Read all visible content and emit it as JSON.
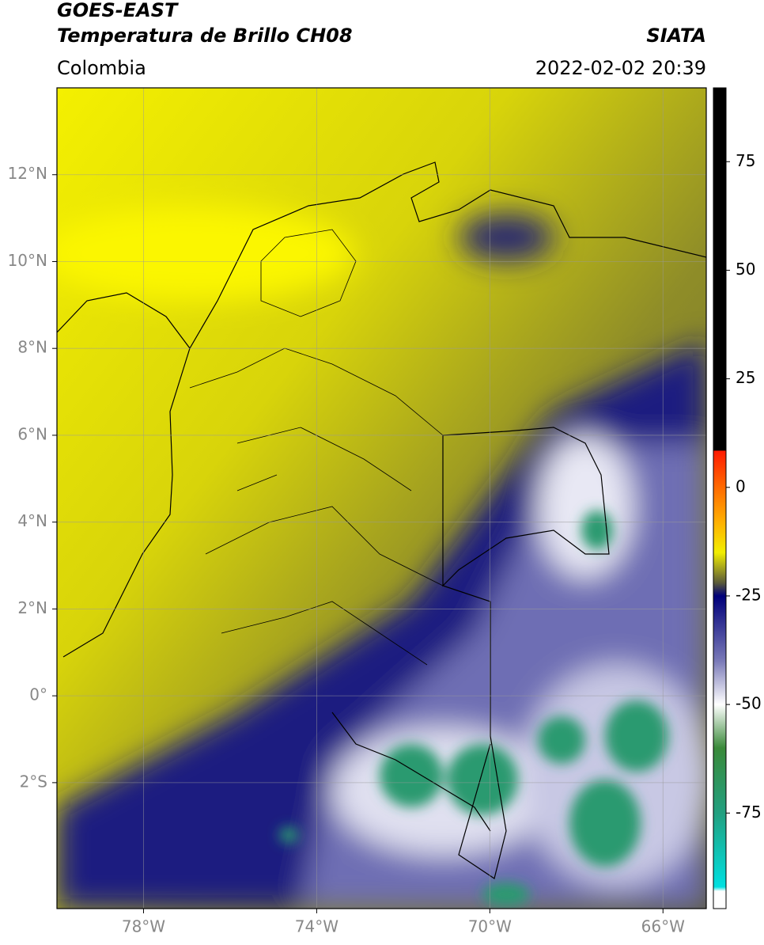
{
  "header": {
    "title_line1": "GOES-EAST",
    "title_line2": "Temperatura de Brillo CH08",
    "region": "Colombia",
    "source": "SIATA",
    "datetime": "2022-02-02 20:39"
  },
  "map": {
    "xlim": [
      -80,
      -65
    ],
    "ylim": [
      -4.9,
      14
    ],
    "xticks": [
      {
        "value": -78,
        "label": "78°W"
      },
      {
        "value": -74,
        "label": "74°W"
      },
      {
        "value": -70,
        "label": "70°W"
      },
      {
        "value": -66,
        "label": "66°W"
      }
    ],
    "yticks": [
      {
        "value": 12,
        "label": "12°N"
      },
      {
        "value": 10,
        "label": "10°N"
      },
      {
        "value": 8,
        "label": "8°N"
      },
      {
        "value": 6,
        "label": "6°N"
      },
      {
        "value": 4,
        "label": "4°N"
      },
      {
        "value": 2,
        "label": "2°N"
      },
      {
        "value": 0,
        "label": "0°"
      },
      {
        "value": -2,
        "label": "2°S"
      }
    ],
    "grid": true
  },
  "colorbar": {
    "lim": [
      -97,
      92
    ],
    "ticks": [
      75,
      50,
      25,
      0,
      -25,
      -50,
      -75
    ],
    "stops": [
      {
        "value": 92,
        "color": "#000000"
      },
      {
        "value": 8.5,
        "color": "#000000"
      },
      {
        "value": 8.4,
        "color": "#ff1a00"
      },
      {
        "value": 0,
        "color": "#ff6a00"
      },
      {
        "value": -8,
        "color": "#ffb000"
      },
      {
        "value": -15,
        "color": "#f2ee00"
      },
      {
        "value": -22,
        "color": "#5a5a3a"
      },
      {
        "value": -25,
        "color": "#00007a"
      },
      {
        "value": -40,
        "color": "#7a7ab8"
      },
      {
        "value": -50,
        "color": "#ffffff"
      },
      {
        "value": -60,
        "color": "#3a8a3a"
      },
      {
        "value": -75,
        "color": "#22a080"
      },
      {
        "value": -92,
        "color": "#00e0e0"
      },
      {
        "value": -93,
        "color": "#ffffff"
      },
      {
        "value": -97,
        "color": "#ffffff"
      }
    ]
  }
}
